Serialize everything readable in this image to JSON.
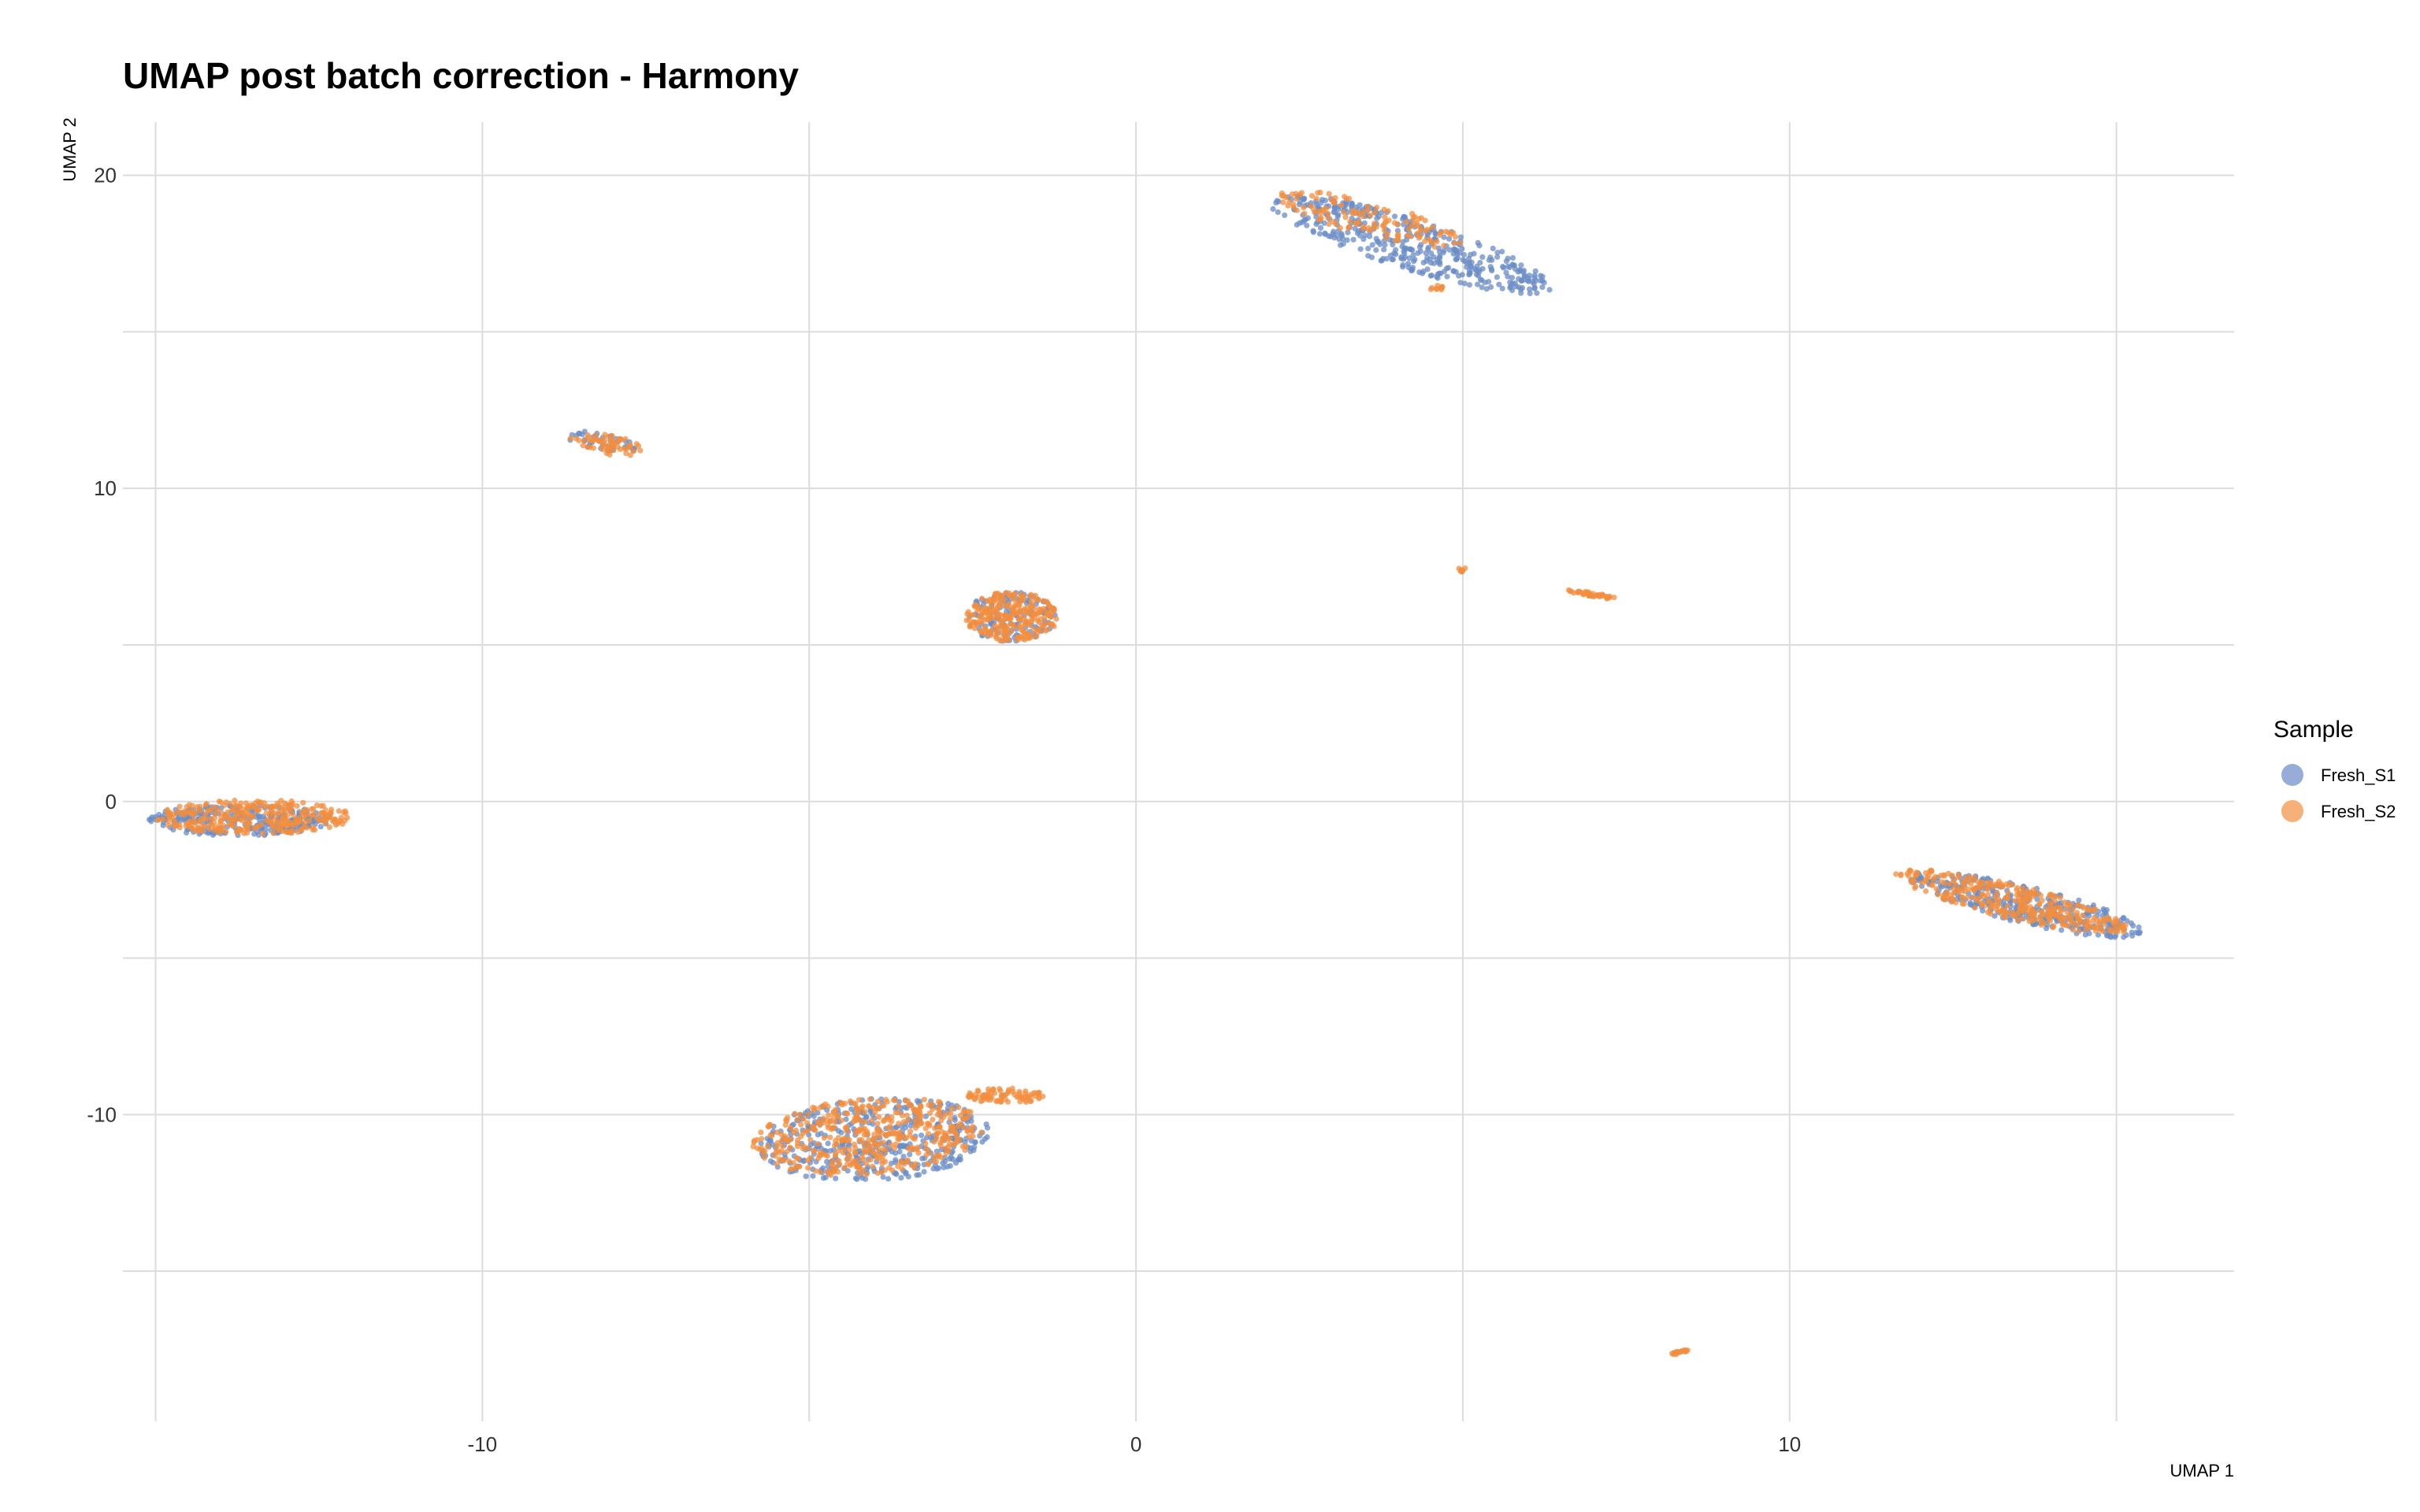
{
  "chart_data": {
    "type": "scatter",
    "title": "UMAP post batch correction - Harmony",
    "xlabel": "UMAP 1",
    "ylabel": "UMAP 2",
    "xlim": [
      -15.5,
      16.8
    ],
    "ylim": [
      -19.8,
      21.7
    ],
    "x_ticks": [
      -10,
      0,
      10
    ],
    "y_ticks": [
      -10,
      0,
      10,
      20
    ],
    "x_minor_gridlines": [
      -15,
      -5,
      5,
      15
    ],
    "y_minor_gridlines": [
      -15,
      -5,
      5,
      15
    ],
    "grid": true,
    "legend": {
      "title": "Sample",
      "position": "right"
    },
    "series": [
      {
        "name": "Fresh_S1",
        "color": "#6a8cc6",
        "clusters": [
          {
            "center": [
              -13.7,
              -0.6
            ],
            "radius": [
              1.4,
              0.5
            ],
            "angle": 0,
            "n": 260
          },
          {
            "center": [
              -8.2,
              11.5
            ],
            "radius": [
              0.6,
              0.25
            ],
            "angle": -25,
            "n": 40
          },
          {
            "center": [
              -1.9,
              5.9
            ],
            "radius": [
              0.7,
              0.8
            ],
            "angle": 0,
            "n": 120
          },
          {
            "center": [
              4.2,
              17.8
            ],
            "radius": [
              2.6,
              0.7
            ],
            "angle": -35,
            "n": 420
          },
          {
            "center": [
              -4.0,
              -10.8
            ],
            "radius": [
              1.8,
              1.3
            ],
            "angle": 15,
            "n": 430
          },
          {
            "center": [
              13.6,
              -3.3
            ],
            "radius": [
              2.0,
              0.55
            ],
            "angle": -28,
            "n": 330
          }
        ]
      },
      {
        "name": "Fresh_S2",
        "color": "#f28e3f",
        "clusters": [
          {
            "center": [
              -13.5,
              -0.5
            ],
            "radius": [
              1.5,
              0.55
            ],
            "angle": 0,
            "n": 300
          },
          {
            "center": [
              -8.1,
              11.4
            ],
            "radius": [
              0.6,
              0.3
            ],
            "angle": -25,
            "n": 60
          },
          {
            "center": [
              -1.9,
              5.9
            ],
            "radius": [
              0.7,
              0.8
            ],
            "angle": 0,
            "n": 260
          },
          {
            "center": [
              3.6,
              18.6
            ],
            "radius": [
              1.6,
              0.5
            ],
            "angle": -30,
            "n": 130
          },
          {
            "center": [
              -4.1,
              -10.7
            ],
            "radius": [
              1.8,
              1.2
            ],
            "angle": 15,
            "n": 460
          },
          {
            "center": [
              -2.0,
              -9.4
            ],
            "radius": [
              0.6,
              0.25
            ],
            "angle": 0,
            "n": 80
          },
          {
            "center": [
              13.4,
              -3.2
            ],
            "radius": [
              2.0,
              0.5
            ],
            "angle": -28,
            "n": 330
          },
          {
            "center": [
              5.0,
              7.4
            ],
            "radius": [
              0.08,
              0.06
            ],
            "angle": 0,
            "n": 8
          },
          {
            "center": [
              7.0,
              6.6
            ],
            "radius": [
              0.45,
              0.06
            ],
            "angle": -20,
            "n": 40
          },
          {
            "center": [
              8.3,
              -17.6
            ],
            "radius": [
              0.2,
              0.05
            ],
            "angle": 25,
            "n": 20
          },
          {
            "center": [
              4.6,
              16.4
            ],
            "radius": [
              0.15,
              0.08
            ],
            "angle": 0,
            "n": 10
          }
        ]
      }
    ]
  }
}
